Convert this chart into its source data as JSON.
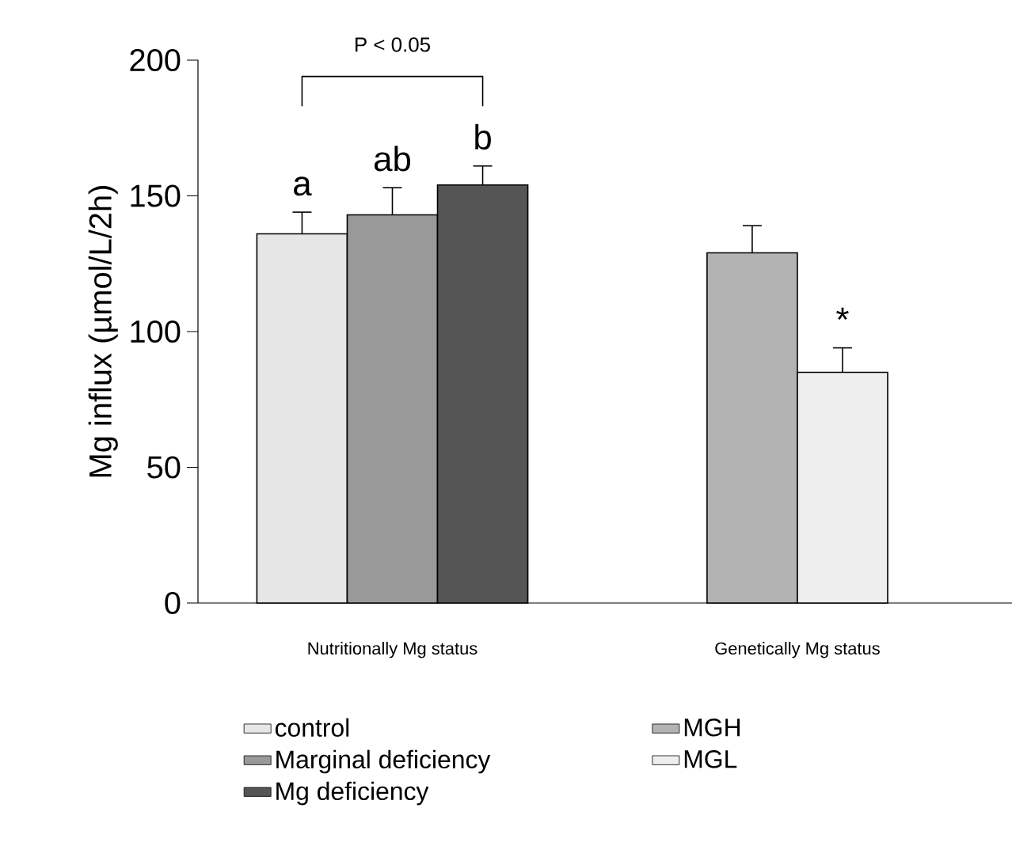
{
  "chart_data": {
    "type": "bar",
    "ylabel": "Mg influx (µmol/L/2h)",
    "categories": [
      "Nutritionally Mg status",
      "Genetically Mg status"
    ],
    "series": [
      {
        "name": "control",
        "color": "#e6e6e6",
        "values": [
          136,
          null
        ],
        "errors": [
          [
            136,
            144
          ],
          null
        ],
        "value_labels": [
          "a",
          null
        ]
      },
      {
        "name": "Marginal deficiency",
        "color": "#999999",
        "values": [
          143,
          null
        ],
        "errors": [
          [
            143,
            153
          ],
          null
        ],
        "value_labels": [
          "ab",
          null
        ]
      },
      {
        "name": "Mg deficiency",
        "color": "#555555",
        "values": [
          154,
          null
        ],
        "errors": [
          [
            154,
            161
          ],
          null
        ],
        "value_labels": [
          "b",
          null
        ]
      },
      {
        "name": "MGH",
        "color": "#b3b3b3",
        "values": [
          null,
          129
        ],
        "errors": [
          null,
          [
            129,
            139
          ]
        ]
      },
      {
        "name": "MGL",
        "color": "#eeeeee",
        "values": [
          null,
          85
        ],
        "errors": [
          null,
          [
            85,
            94
          ]
        ],
        "value_labels": [
          null,
          "*"
        ]
      }
    ],
    "ylim": [
      0,
      200
    ],
    "yticks": [
      0,
      50,
      100,
      150,
      200
    ],
    "legend": "bottom",
    "annotations": [
      "P < 0.05"
    ]
  }
}
